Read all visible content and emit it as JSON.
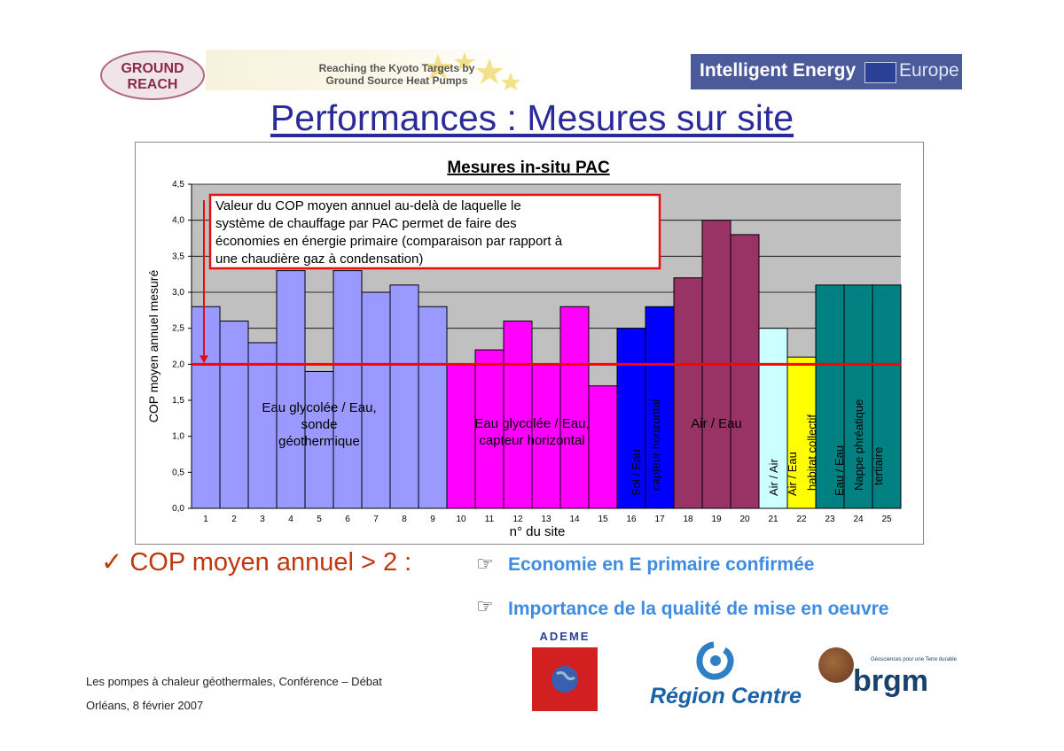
{
  "header": {
    "ground_reach": [
      "GROUND",
      "REACH"
    ],
    "kyoto_line1": "Reaching the Kyoto Targets by",
    "kyoto_line2": "Ground Source Heat Pumps",
    "iee_label": "Intelligent Energy",
    "iee_europe": "Europe"
  },
  "page_title": "Performances : Mesures sur site",
  "chart_data": {
    "type": "bar",
    "title": "Mesures in-situ PAC",
    "xlabel": "n° du site",
    "ylabel": "COP moyen annuel mesuré",
    "ylim": [
      0,
      4.5
    ],
    "yticks": [
      "0,0",
      "0,5",
      "1,0",
      "1,5",
      "2,0",
      "2,5",
      "3,0",
      "3,5",
      "4,0",
      "4,5"
    ],
    "categories": [
      "1",
      "2",
      "3",
      "4",
      "5",
      "6",
      "7",
      "8",
      "9",
      "10",
      "11",
      "12",
      "13",
      "14",
      "15",
      "16",
      "17",
      "18",
      "19",
      "20",
      "21",
      "22",
      "23",
      "24",
      "25"
    ],
    "values": [
      2.8,
      2.6,
      2.3,
      3.3,
      1.9,
      3.3,
      3.0,
      3.1,
      2.8,
      2.0,
      2.2,
      2.6,
      2.0,
      2.8,
      1.7,
      2.5,
      2.8,
      3.2,
      4.0,
      3.8,
      2.5,
      2.1,
      3.1,
      3.1,
      3.1
    ],
    "bar_colors": [
      "#9999ff",
      "#9999ff",
      "#9999ff",
      "#9999ff",
      "#9999ff",
      "#9999ff",
      "#9999ff",
      "#9999ff",
      "#9999ff",
      "#ff00ff",
      "#ff00ff",
      "#ff00ff",
      "#ff00ff",
      "#ff00ff",
      "#ff00ff",
      "#0000ff",
      "#0000ff",
      "#993366",
      "#993366",
      "#993366",
      "#ccffff",
      "#ffff00",
      "#008080",
      "#008080",
      "#008080"
    ],
    "threshold": 2.0,
    "threshold_color": "#ff0000",
    "plot_bg": "#c0c0c0",
    "annotation": [
      "Valeur du COP moyen annuel au-delà de laquelle le",
      "système de chauffage par PAC permet de faire des",
      "économies en énergie primaire (comparaison par rapport à",
      "une chaudière gaz à condensation)"
    ],
    "group_labels": [
      {
        "lines": [
          "Eau glycolée / Eau,",
          "sonde",
          "géothermique"
        ],
        "from": 1,
        "to": 9
      },
      {
        "lines": [
          "Eau glycolée / Eau,",
          "capteur horizontal"
        ],
        "from": 10,
        "to": 15
      },
      {
        "lines": [
          "Sol / Eau",
          "capteur horizontal"
        ],
        "from": 16,
        "to": 17,
        "vertical": true
      },
      {
        "lines": [
          "Air / Eau"
        ],
        "from": 18,
        "to": 20
      },
      {
        "lines": [
          "Air / Air"
        ],
        "from": 21,
        "to": 21,
        "vertical": true
      },
      {
        "lines": [
          "Air / Eau",
          "habitat collectif"
        ],
        "from": 22,
        "to": 22,
        "vertical": true
      },
      {
        "lines": [
          "Eau / Eau",
          "Nappe phréatique",
          "tertiaire"
        ],
        "from": 23,
        "to": 25,
        "vertical": true
      }
    ]
  },
  "bottom": {
    "cop_line": "✓ COP moyen annuel > 2 :",
    "eco_line": "Economie en E primaire confirmée",
    "quality_line": "Importance de la qualité de mise en oeuvre",
    "hand_icon": "☞"
  },
  "footer": {
    "line1": "Les pompes à chaleur géothermales, Conférence – Débat",
    "line2": "Orléans, 8 février 2007"
  },
  "logos": {
    "ademe": "ADEME",
    "region": "Région Centre",
    "brgm": "brgm",
    "brgm_tag": "Géosciences pour une Terre durable"
  }
}
